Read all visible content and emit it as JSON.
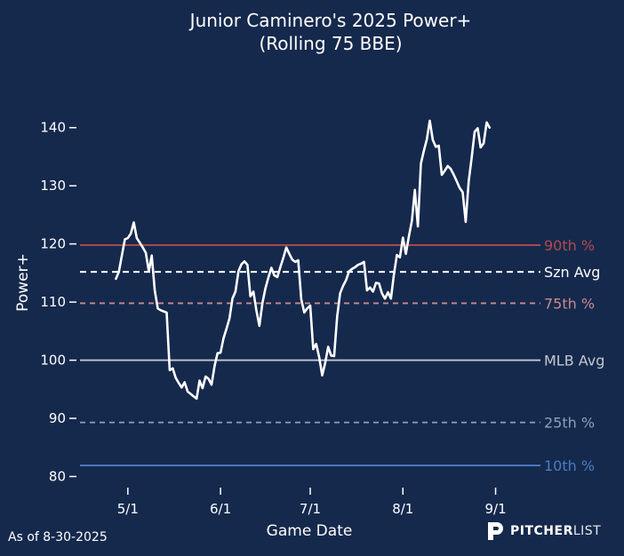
{
  "chart_data": {
    "type": "line",
    "title": "Junior Caminero's 2025 Power+",
    "subtitle": "(Rolling 75 BBE)",
    "xlabel": "Game Date",
    "ylabel": "Power+",
    "x_ticks": [
      {
        "date": "2025-05-01",
        "label": "5/1"
      },
      {
        "date": "2025-06-01",
        "label": "6/1"
      },
      {
        "date": "2025-07-01",
        "label": "7/1"
      },
      {
        "date": "2025-08-01",
        "label": "8/1"
      },
      {
        "date": "2025-09-01",
        "label": "9/1"
      }
    ],
    "y_ticks": [
      80,
      90,
      100,
      110,
      120,
      130,
      140
    ],
    "xlim": [
      "2025-04-15",
      "2025-09-16"
    ],
    "ylim": [
      78.7,
      150.5
    ],
    "grid": false,
    "reference_lines": [
      {
        "label": "90th %",
        "value": 119.8,
        "color": "#b34a4f",
        "style": "solid"
      },
      {
        "label": "Szn Avg",
        "value": 115.2,
        "color": "#ffffff",
        "style": "dashed"
      },
      {
        "label": "75th %",
        "value": 109.8,
        "color": "#c98a8c",
        "style": "dashed"
      },
      {
        "label": "MLB Avg",
        "value": 100.0,
        "color": "#c4c8d0",
        "style": "solid"
      },
      {
        "label": "25th %",
        "value": 89.3,
        "color": "#8ea0bf",
        "style": "dashed"
      },
      {
        "label": "10th %",
        "value": 81.9,
        "color": "#4a7cc4",
        "style": "solid"
      }
    ],
    "series": [
      {
        "color": "#ffffff",
        "points": [
          [
            "2025-04-27",
            114.0
          ],
          [
            "2025-04-28",
            115.2
          ],
          [
            "2025-04-29",
            118.0
          ],
          [
            "2025-04-30",
            120.8
          ],
          [
            "2025-05-01",
            121.0
          ],
          [
            "2025-05-02",
            121.8
          ],
          [
            "2025-05-03",
            123.7
          ],
          [
            "2025-05-04",
            121.0
          ],
          [
            "2025-05-05",
            120.2
          ],
          [
            "2025-05-06",
            119.4
          ],
          [
            "2025-05-07",
            118.5
          ],
          [
            "2025-05-08",
            115.3
          ],
          [
            "2025-05-09",
            118.0
          ],
          [
            "2025-05-10",
            112.0
          ],
          [
            "2025-05-11",
            108.9
          ],
          [
            "2025-05-12",
            108.6
          ],
          [
            "2025-05-13",
            108.4
          ],
          [
            "2025-05-14",
            108.2
          ],
          [
            "2025-05-15",
            98.3
          ],
          [
            "2025-05-16",
            98.6
          ],
          [
            "2025-05-17",
            97.0
          ],
          [
            "2025-05-18",
            96.1
          ],
          [
            "2025-05-19",
            95.3
          ],
          [
            "2025-05-20",
            96.2
          ],
          [
            "2025-05-21",
            94.6
          ],
          [
            "2025-05-22",
            94.2
          ],
          [
            "2025-05-23",
            93.8
          ],
          [
            "2025-05-24",
            93.4
          ],
          [
            "2025-05-25",
            96.5
          ],
          [
            "2025-05-26",
            95.2
          ],
          [
            "2025-05-27",
            97.2
          ],
          [
            "2025-05-28",
            96.8
          ],
          [
            "2025-05-29",
            95.8
          ],
          [
            "2025-05-30",
            99.0
          ],
          [
            "2025-05-31",
            101.2
          ],
          [
            "2025-06-01",
            101.3
          ],
          [
            "2025-06-02",
            103.8
          ],
          [
            "2025-06-03",
            105.4
          ],
          [
            "2025-06-04",
            107.2
          ],
          [
            "2025-06-05",
            110.6
          ],
          [
            "2025-06-06",
            111.8
          ],
          [
            "2025-06-07",
            115.3
          ],
          [
            "2025-06-08",
            116.5
          ],
          [
            "2025-06-09",
            117.0
          ],
          [
            "2025-06-10",
            116.4
          ],
          [
            "2025-06-11",
            111.0
          ],
          [
            "2025-06-12",
            111.8
          ],
          [
            "2025-06-13",
            108.5
          ],
          [
            "2025-06-14",
            105.9
          ],
          [
            "2025-06-15",
            109.8
          ],
          [
            "2025-06-16",
            112.3
          ],
          [
            "2025-06-17",
            114.2
          ],
          [
            "2025-06-18",
            115.9
          ],
          [
            "2025-06-19",
            114.6
          ],
          [
            "2025-06-20",
            114.3
          ],
          [
            "2025-06-21",
            116.0
          ],
          [
            "2025-06-22",
            117.6
          ],
          [
            "2025-06-23",
            119.4
          ],
          [
            "2025-06-24",
            118.3
          ],
          [
            "2025-06-25",
            117.3
          ],
          [
            "2025-06-26",
            116.9
          ],
          [
            "2025-06-27",
            117.2
          ],
          [
            "2025-06-28",
            110.5
          ],
          [
            "2025-06-29",
            108.2
          ],
          [
            "2025-06-30",
            108.9
          ],
          [
            "2025-07-01",
            109.4
          ],
          [
            "2025-07-02",
            101.9
          ],
          [
            "2025-07-03",
            102.8
          ],
          [
            "2025-07-04",
            100.5
          ],
          [
            "2025-07-05",
            97.4
          ],
          [
            "2025-07-06",
            99.5
          ],
          [
            "2025-07-07",
            102.3
          ],
          [
            "2025-07-08",
            100.8
          ],
          [
            "2025-07-09",
            100.7
          ],
          [
            "2025-07-10",
            107.5
          ],
          [
            "2025-07-11",
            111.5
          ],
          [
            "2025-07-12",
            112.8
          ],
          [
            "2025-07-13",
            113.8
          ],
          [
            "2025-07-14",
            115.3
          ],
          [
            "2025-07-15",
            115.7
          ],
          [
            "2025-07-16",
            116.0
          ],
          [
            "2025-07-17",
            116.4
          ],
          [
            "2025-07-18",
            116.6
          ],
          [
            "2025-07-19",
            116.9
          ],
          [
            "2025-07-20",
            112.0
          ],
          [
            "2025-07-21",
            112.5
          ],
          [
            "2025-07-22",
            111.8
          ],
          [
            "2025-07-23",
            113.3
          ],
          [
            "2025-07-24",
            113.2
          ],
          [
            "2025-07-25",
            111.5
          ],
          [
            "2025-07-26",
            110.6
          ],
          [
            "2025-07-27",
            111.7
          ],
          [
            "2025-07-28",
            110.6
          ],
          [
            "2025-07-29",
            114.8
          ],
          [
            "2025-07-30",
            118.1
          ],
          [
            "2025-07-31",
            117.7
          ],
          [
            "2025-08-01",
            121.1
          ],
          [
            "2025-08-02",
            118.3
          ],
          [
            "2025-08-03",
            121.3
          ],
          [
            "2025-08-04",
            124.0
          ],
          [
            "2025-08-05",
            129.3
          ],
          [
            "2025-08-06",
            123.0
          ],
          [
            "2025-08-07",
            133.8
          ],
          [
            "2025-08-08",
            136.0
          ],
          [
            "2025-08-09",
            138.0
          ],
          [
            "2025-08-10",
            141.2
          ],
          [
            "2025-08-11",
            137.9
          ],
          [
            "2025-08-12",
            136.7
          ],
          [
            "2025-08-13",
            136.9
          ],
          [
            "2025-08-14",
            131.9
          ],
          [
            "2025-08-15",
            132.6
          ],
          [
            "2025-08-16",
            133.4
          ],
          [
            "2025-08-17",
            132.9
          ],
          [
            "2025-08-18",
            131.9
          ],
          [
            "2025-08-19",
            130.8
          ],
          [
            "2025-08-20",
            129.6
          ],
          [
            "2025-08-21",
            128.9
          ],
          [
            "2025-08-22",
            123.8
          ],
          [
            "2025-08-23",
            130.8
          ],
          [
            "2025-08-24",
            134.8
          ],
          [
            "2025-08-25",
            139.3
          ],
          [
            "2025-08-26",
            139.9
          ],
          [
            "2025-08-27",
            136.6
          ],
          [
            "2025-08-28",
            137.3
          ],
          [
            "2025-08-29",
            140.9
          ],
          [
            "2025-08-30",
            140.0
          ]
        ]
      }
    ]
  },
  "footer": {
    "as_of": "As of 8-30-2025",
    "brand_bold": "PITCHER",
    "brand_light": "LIST"
  }
}
